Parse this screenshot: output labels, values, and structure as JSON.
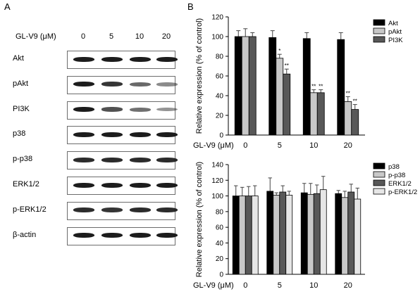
{
  "panels": {
    "a_label": "A",
    "b_label": "B"
  },
  "blot": {
    "dose_header": "GL-V9 (μM)",
    "doses": [
      "0",
      "5",
      "10",
      "20"
    ],
    "rows": [
      {
        "label": "Akt",
        "bands": [
          1.0,
          1.0,
          1.0,
          1.0
        ]
      },
      {
        "label": "pAkt",
        "bands": [
          1.0,
          0.85,
          0.55,
          0.35
        ]
      },
      {
        "label": "PI3K",
        "bands": [
          1.0,
          0.7,
          0.5,
          0.3
        ]
      },
      {
        "label": "p38",
        "bands": [
          1.0,
          1.0,
          1.0,
          1.0
        ]
      },
      {
        "label": "p-p38",
        "bands": [
          0.9,
          0.9,
          0.9,
          0.9
        ]
      },
      {
        "label": "ERK1/2",
        "bands": [
          1.0,
          1.0,
          1.0,
          1.0
        ]
      },
      {
        "label": "p-ERK1/2",
        "bands": [
          0.9,
          0.85,
          0.9,
          0.9
        ]
      },
      {
        "label": "β-actin",
        "bands": [
          1.0,
          1.0,
          1.0,
          1.0
        ]
      }
    ]
  },
  "chart_data": [
    {
      "type": "bar",
      "categories": [
        "0",
        "5",
        "10",
        "20"
      ],
      "xlabel": "GL-V9 (μM)",
      "ylabel": "Relative expression (% of control)",
      "ylim": [
        0,
        120
      ],
      "yticks": [
        0,
        20,
        40,
        60,
        80,
        100,
        120
      ],
      "legend_position": "top-right",
      "series": [
        {
          "name": "Akt",
          "color": "#000000",
          "values": [
            100,
            99,
            98,
            97
          ],
          "errors": [
            6,
            7,
            6,
            7
          ],
          "marks": [
            "",
            "",
            "",
            ""
          ]
        },
        {
          "name": "pAkt",
          "color": "#c8c8c8",
          "values": [
            100,
            78,
            43,
            34
          ],
          "errors": [
            8,
            4,
            3,
            5
          ],
          "marks": [
            "",
            "*",
            "**",
            "**"
          ]
        },
        {
          "name": "PI3K",
          "color": "#585858",
          "values": [
            100,
            62,
            43,
            26
          ],
          "errors": [
            4,
            5,
            3,
            5
          ],
          "marks": [
            "",
            "**",
            "**",
            "**"
          ]
        }
      ]
    },
    {
      "type": "bar",
      "categories": [
        "0",
        "5",
        "10",
        "20"
      ],
      "xlabel": "GL-V9 (μM)",
      "ylabel": "Relative expression (% of control)",
      "ylim": [
        0,
        140
      ],
      "yticks": [
        0,
        20,
        40,
        60,
        80,
        100,
        120,
        140
      ],
      "legend_position": "top-right",
      "series": [
        {
          "name": "p38",
          "color": "#000000",
          "values": [
            100,
            106,
            104,
            103
          ],
          "errors": [
            13,
            17,
            12,
            4
          ]
        },
        {
          "name": "p-p38",
          "color": "#c8c8c8",
          "values": [
            100,
            101,
            102,
            98
          ],
          "errors": [
            11,
            3,
            14,
            8
          ]
        },
        {
          "name": "ERK1/2",
          "color": "#585858",
          "values": [
            100,
            105,
            103,
            105
          ],
          "errors": [
            12,
            8,
            11,
            10
          ]
        },
        {
          "name": "p-ERK1/2",
          "color": "#e6e6e6",
          "values": [
            100,
            101,
            108,
            96
          ],
          "errors": [
            13,
            5,
            17,
            14
          ]
        }
      ]
    }
  ]
}
